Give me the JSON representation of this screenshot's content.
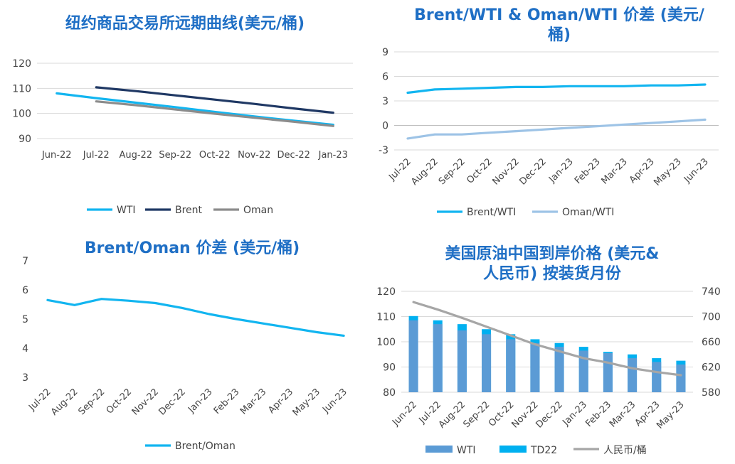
{
  "colors": {
    "title": "#1f6fc5",
    "wti": "#12b5f0",
    "brent": "#1f3864",
    "oman": "#8c8c8c",
    "oman_wti": "#9dc3e6",
    "wti_bar": "#5b9bd5",
    "td22": "#00b0f0",
    "rmb": "#a6a6a6",
    "grid": "#d9d9d9"
  },
  "chart_data": [
    {
      "id": "futures-curve",
      "type": "line",
      "title": "纽约商品交易所远期曲线(美元/桶)",
      "categories": [
        "Jun-22",
        "Jul-22",
        "Aug-22",
        "Sep-22",
        "Oct-22",
        "Nov-22",
        "Dec-22",
        "Jan-23"
      ],
      "ylim": [
        90,
        120
      ],
      "yticks": [
        90,
        100,
        110,
        120
      ],
      "grid": true,
      "legend": "bottom",
      "series": [
        {
          "name": "WTI",
          "values": [
            108.0,
            106.1,
            104.3,
            102.5,
            100.6,
            98.8,
            97.1,
            95.5
          ]
        },
        {
          "name": "Brent",
          "values": [
            null,
            110.4,
            108.9,
            107.2,
            105.5,
            103.8,
            102.0,
            100.3
          ]
        },
        {
          "name": "Oman",
          "values": [
            null,
            104.8,
            103.3,
            101.6,
            99.9,
            98.3,
            96.7,
            95.0
          ]
        }
      ]
    },
    {
      "id": "spreads",
      "type": "line",
      "title": "Brent/WTI & Oman/WTI 价差 (美元/桶)",
      "categories": [
        "Jul-22",
        "Aug-22",
        "Sep-22",
        "Oct-22",
        "Nov-22",
        "Dec-22",
        "Jan-23",
        "Feb-23",
        "Mar-23",
        "Apr-23",
        "May-23",
        "Jun-23"
      ],
      "ylim": [
        -3,
        9
      ],
      "yticks": [
        -3,
        0,
        3,
        6,
        9
      ],
      "grid": true,
      "legend": "bottom",
      "series": [
        {
          "name": "Brent/WTI",
          "values": [
            4.0,
            4.4,
            4.5,
            4.6,
            4.7,
            4.7,
            4.8,
            4.8,
            4.8,
            4.9,
            4.9,
            5.0
          ]
        },
        {
          "name": "Oman/WTI",
          "values": [
            -1.6,
            -1.1,
            -1.1,
            -0.9,
            -0.7,
            -0.5,
            -0.3,
            -0.1,
            0.1,
            0.3,
            0.5,
            0.7
          ]
        }
      ]
    },
    {
      "id": "brent-oman",
      "type": "line",
      "title": "Brent/Oman 价差 (美元/桶)",
      "categories": [
        "Jul-22",
        "Aug-22",
        "Sep-22",
        "Oct-22",
        "Nov-22",
        "Dec-22",
        "Jan-23",
        "Feb-23",
        "Mar-23",
        "Apr-23",
        "May-23",
        "Jun-23"
      ],
      "ylim": [
        3,
        7
      ],
      "yticks": [
        3,
        4,
        5,
        6,
        7
      ],
      "grid": false,
      "legend": "bottom",
      "series": [
        {
          "name": "Brent/Oman",
          "values": [
            5.65,
            5.48,
            5.69,
            5.63,
            5.55,
            5.38,
            5.17,
            5.0,
            4.85,
            4.7,
            4.55,
            4.43
          ]
        }
      ]
    },
    {
      "id": "china-landed",
      "type": "bar",
      "title": "美国原油中国到岸价格 (美元&人民币) 按装货月份",
      "title_lines": [
        "美国原油中国到岸价格 (美元&",
        "人民币) 按装货月份"
      ],
      "categories": [
        "Jun-22",
        "Jul-22",
        "Aug-22",
        "Sep-22",
        "Oct-22",
        "Nov-22",
        "Dec-22",
        "Jan-23",
        "Feb-23",
        "Mar-23",
        "Apr-23",
        "May-23"
      ],
      "ylim": [
        80,
        120
      ],
      "yticks": [
        80,
        90,
        100,
        110,
        120
      ],
      "y2lim": [
        580,
        740
      ],
      "y2ticks": [
        580,
        620,
        660,
        700,
        740
      ],
      "grid": true,
      "legend": "bottom",
      "series": [
        {
          "name": "WTI",
          "axis": "left",
          "values": [
            108.5,
            107.0,
            104.5,
            103.0,
            101.0,
            99.5,
            98.0,
            96.5,
            95.5,
            93.5,
            92.0,
            91.0
          ]
        },
        {
          "name": "TD22",
          "axis": "left",
          "values": [
            110.2,
            108.5,
            107.0,
            105.0,
            103.0,
            101.0,
            99.5,
            98.0,
            96.0,
            95.0,
            93.5,
            92.5
          ]
        },
        {
          "name": "人民币/桶",
          "axis": "right",
          "values": [
            723,
            711,
            698,
            684,
            670,
            656,
            645,
            634,
            627,
            618,
            612,
            607
          ]
        }
      ]
    }
  ]
}
